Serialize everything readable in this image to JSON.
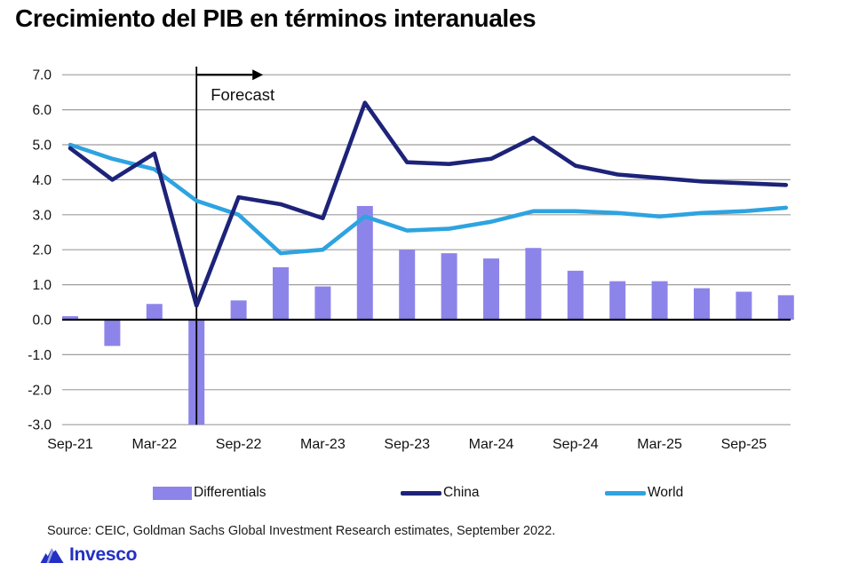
{
  "title": "Crecimiento del PIB en términos interanuales",
  "source": "Source: CEIC, Goldman Sachs Global Investment Research estimates, September 2022.",
  "logo": {
    "text": "Invesco",
    "icon": "invesco-mountain-icon",
    "color": "#2230c4"
  },
  "legend": [
    {
      "label": "Differentials",
      "type": "bar",
      "color": "#8d84ea"
    },
    {
      "label": "China",
      "type": "line",
      "color": "#1d2379"
    },
    {
      "label": "World",
      "type": "line",
      "color": "#2ea3e0"
    }
  ],
  "colors": {
    "bar": "#8d84ea",
    "china_line": "#1d2379",
    "world_line": "#2ea3e0",
    "gridline": "#9e9e9e",
    "zero_line": "#000000",
    "forecast_line": "#000000",
    "text": "#111111"
  },
  "chart_data": {
    "type": "bar+line combo",
    "title": "Crecimiento del PIB en términos interanuales",
    "x": [
      "Sep-21",
      "Dec-21",
      "Mar-22",
      "Jun-22",
      "Sep-22",
      "Dec-22",
      "Mar-23",
      "Jun-23",
      "Sep-23",
      "Dec-23",
      "Mar-24",
      "Jun-24",
      "Sep-24",
      "Dec-24",
      "Mar-25",
      "Jun-25",
      "Sep-25",
      "Dec-25"
    ],
    "x_tick_labels": [
      "Sep-21",
      "Mar-22",
      "Sep-22",
      "Mar-23",
      "Sep-23",
      "Mar-24",
      "Sep-24",
      "Mar-25",
      "Sep-25"
    ],
    "y_tick_labels": [
      "7.0",
      "6.0",
      "5.0",
      "4.0",
      "3.0",
      "2.0",
      "1.0",
      "0.0",
      "-1.0",
      "-2.0",
      "-3.0"
    ],
    "ylim": [
      -3.0,
      7.0
    ],
    "ytick_step": 1.0,
    "grid": true,
    "legend_position": "bottom",
    "series": [
      {
        "name": "Differentials",
        "type": "bar",
        "color": "#8d84ea",
        "values": [
          0.1,
          -0.75,
          0.45,
          -3.0,
          0.55,
          1.5,
          0.95,
          3.25,
          2.0,
          1.9,
          1.75,
          2.05,
          1.4,
          1.1,
          1.1,
          0.9,
          0.8,
          0.7
        ]
      },
      {
        "name": "China",
        "type": "line",
        "color": "#1d2379",
        "values": [
          4.9,
          4.0,
          4.75,
          0.4,
          3.5,
          3.3,
          2.9,
          6.2,
          4.5,
          4.45,
          4.6,
          5.2,
          4.4,
          4.15,
          4.05,
          3.95,
          3.9,
          3.85
        ]
      },
      {
        "name": "World",
        "type": "line",
        "color": "#2ea3e0",
        "values": [
          5.0,
          4.6,
          4.3,
          3.4,
          3.0,
          1.9,
          2.0,
          2.95,
          2.55,
          2.6,
          2.8,
          3.1,
          3.1,
          3.05,
          2.95,
          3.05,
          3.1,
          3.2
        ]
      }
    ],
    "annotations": {
      "forecast": {
        "label": "Forecast",
        "x": "Jun-22"
      }
    }
  }
}
